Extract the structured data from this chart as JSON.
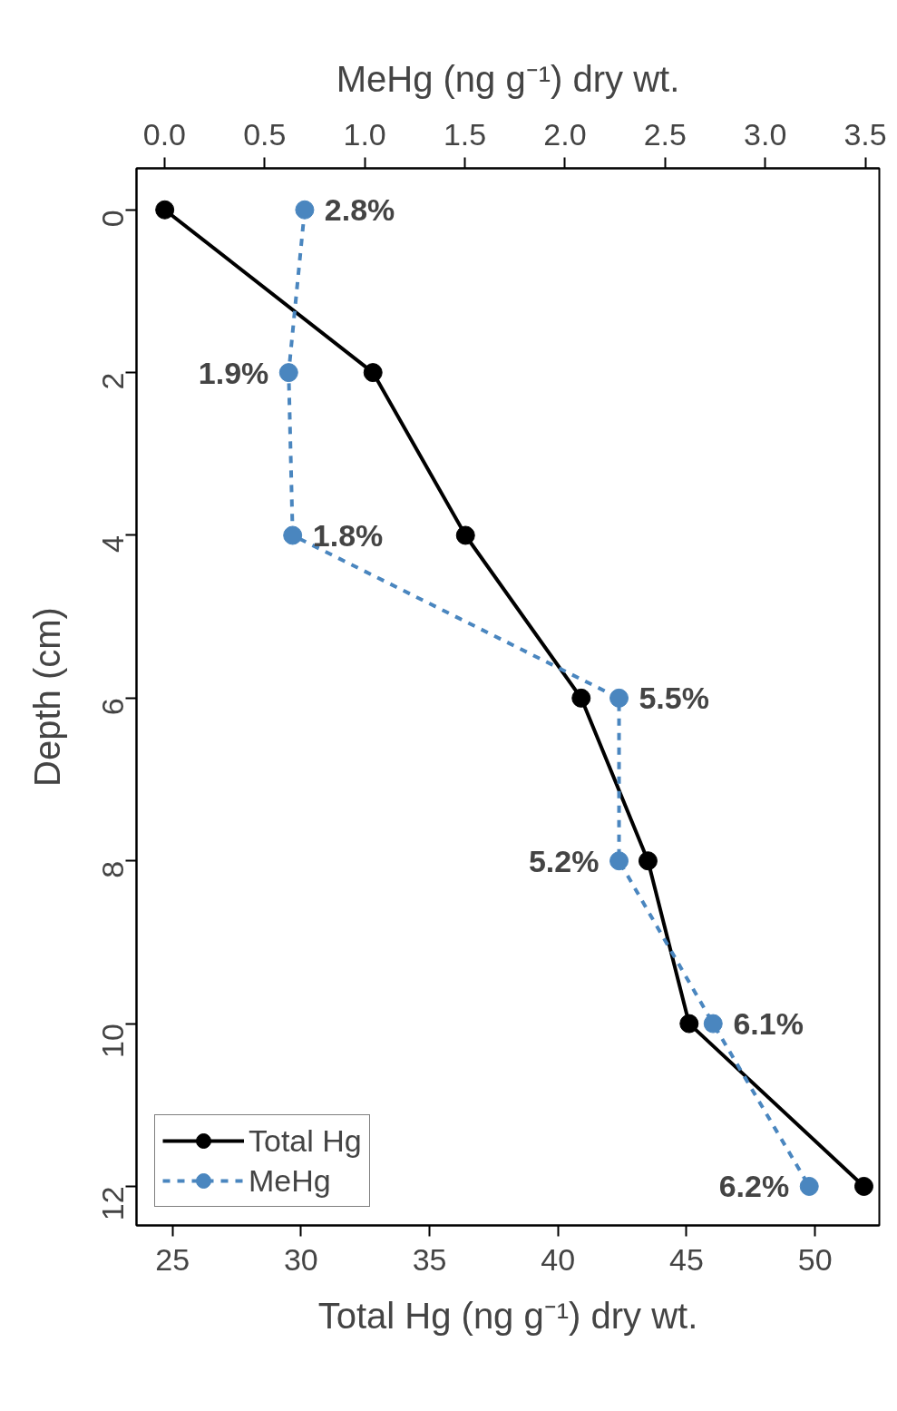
{
  "chart_data": {
    "type": "line",
    "xlabel": "Total Hg (ng g⁻¹) dry wt.",
    "x2label": "MeHg (ng g⁻¹) dry wt.",
    "ylabel": "Depth (cm)",
    "series": [
      {
        "name": "Total Hg",
        "color": "#000000",
        "x": [
          24.7,
          32.8,
          36.4,
          40.9,
          43.5,
          45.1,
          51.9
        ],
        "values": [
          0,
          2,
          4,
          6,
          8,
          10,
          12
        ],
        "line_style": "solid"
      },
      {
        "name": "MeHg",
        "color": "#4a86bf",
        "axis": "x2",
        "x": [
          0.7,
          0.62,
          0.64,
          2.27,
          2.27,
          2.74,
          3.22
        ],
        "values": [
          0,
          2,
          4,
          6,
          8,
          10,
          12
        ],
        "line_style": "dashed"
      }
    ],
    "annotations": [
      {
        "text": "2.8%",
        "x": 30.14,
        "y": 0
      },
      {
        "text": "1.9%",
        "x": 29.52,
        "y": 2
      },
      {
        "text": "1.8%",
        "x": 29.68,
        "y": 4
      },
      {
        "text": "5.5%",
        "x": 42.37,
        "y": 6
      },
      {
        "text": "5.2%",
        "x": 42.37,
        "y": 8
      },
      {
        "text": "6.1%",
        "x": 46.04,
        "y": 10
      },
      {
        "text": "6.2%",
        "x": 49.77,
        "y": 12
      }
    ],
    "xlim": [
      23.6,
      52.5
    ],
    "xticks": [
      25,
      30,
      35,
      40,
      45,
      50
    ],
    "x2lim": [
      -0.14,
      3.57
    ],
    "x2ticks": [
      {
        "value": 0,
        "label": "0.0"
      },
      0.5,
      {
        "value": 1,
        "label": "1.0"
      },
      1.5,
      {
        "value": 2,
        "label": "2.0"
      },
      2.5,
      {
        "value": 3,
        "label": "3.0"
      },
      3.5
    ],
    "ylim": [
      12.48,
      -0.51
    ],
    "yticks": [
      0,
      2,
      4,
      6,
      8,
      10,
      12
    ],
    "marker": "circle",
    "grid": false,
    "legend": "bottom left"
  }
}
